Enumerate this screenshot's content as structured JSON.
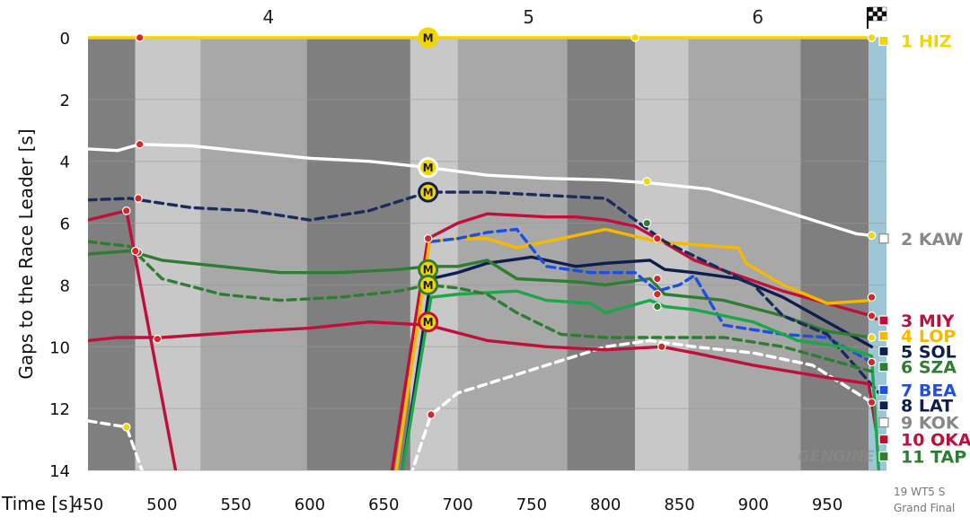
{
  "chart_data": {
    "type": "line",
    "xlabel": "Time [s]",
    "ylabel": "Gaps to the Race Leader [s]",
    "xlim": [
      450,
      990
    ],
    "ylim": [
      0,
      14
    ],
    "y_inverted": true,
    "x_ticks": [
      "450",
      "500",
      "550",
      "600",
      "650",
      "700",
      "750",
      "800",
      "850",
      "900",
      "950"
    ],
    "y_ticks": [
      "0",
      "2",
      "4",
      "6",
      "8",
      "10",
      "12",
      "14"
    ],
    "grid": true,
    "legend_placement": "right",
    "laps": [
      {
        "label": "4",
        "center": 572
      },
      {
        "label": "5",
        "center": 748
      },
      {
        "label": "6",
        "center": 903
      }
    ],
    "sector_bands": [
      {
        "from": 450,
        "to": 482,
        "shade": "#7f7f7f"
      },
      {
        "from": 482,
        "to": 526,
        "shade": "#c8c8c8"
      },
      {
        "from": 526,
        "to": 598,
        "shade": "#a8a8a8"
      },
      {
        "from": 598,
        "to": 668,
        "shade": "#7f7f7f"
      },
      {
        "from": 668,
        "to": 700,
        "shade": "#c8c8c8"
      },
      {
        "from": 700,
        "to": 774,
        "shade": "#a8a8a8"
      },
      {
        "from": 774,
        "to": 820,
        "shade": "#7f7f7f"
      },
      {
        "from": 820,
        "to": 856,
        "shade": "#c8c8c8"
      },
      {
        "from": 856,
        "to": 932,
        "shade": "#a8a8a8"
      },
      {
        "from": 932,
        "to": 978,
        "shade": "#7f7f7f"
      },
      {
        "from": 978,
        "to": 990,
        "shade": "#9ec7d6"
      }
    ],
    "series": [
      {
        "name": "1 HIZ",
        "color": "#f2d600",
        "dash": false,
        "points": [
          [
            450,
            0
          ],
          [
            485,
            0
          ],
          [
            680,
            0
          ],
          [
            820,
            0
          ],
          [
            980,
            0
          ]
        ],
        "markers": [
          [
            485,
            0,
            "#d62728"
          ],
          [
            820,
            0,
            "#f2d600"
          ],
          [
            980,
            0,
            "#f2d600"
          ]
        ]
      },
      {
        "name": "2 KAW",
        "color": "#ffffff",
        "dash": false,
        "points": [
          [
            450,
            3.6
          ],
          [
            470,
            3.65
          ],
          [
            485,
            3.45
          ],
          [
            520,
            3.5
          ],
          [
            560,
            3.7
          ],
          [
            600,
            3.9
          ],
          [
            640,
            4.0
          ],
          [
            680,
            4.2
          ],
          [
            720,
            4.45
          ],
          [
            760,
            4.55
          ],
          [
            800,
            4.6
          ],
          [
            830,
            4.7
          ],
          [
            870,
            4.9
          ],
          [
            900,
            5.3
          ],
          [
            940,
            5.9
          ],
          [
            970,
            6.35
          ],
          [
            980,
            6.4
          ]
        ],
        "markers": [
          [
            485,
            3.45,
            "#d62728"
          ],
          [
            828,
            4.65,
            "#f2d600"
          ],
          [
            980,
            6.4,
            "#f2d600"
          ]
        ]
      },
      {
        "name": "3 MIY",
        "color": "#c0103a",
        "dash": false,
        "points": [
          [
            450,
            5.9
          ],
          [
            476,
            5.6
          ],
          [
            510,
            14.2
          ]
        ],
        "markers": [
          [
            476,
            5.6,
            "#d62728"
          ]
        ]
      },
      {
        "name": "3 MIY lap5",
        "color": "#c0103a",
        "dash": false,
        "points": [
          [
            655,
            14.2
          ],
          [
            680,
            6.5
          ],
          [
            700,
            6.0
          ],
          [
            720,
            5.7
          ],
          [
            760,
            5.8
          ],
          [
            780,
            5.8
          ],
          [
            800,
            5.9
          ],
          [
            820,
            6.1
          ],
          [
            835,
            6.5
          ],
          [
            860,
            7.2
          ],
          [
            890,
            7.7
          ],
          [
            920,
            8.2
          ],
          [
            950,
            8.6
          ],
          [
            980,
            9.0
          ],
          [
            983,
            9.1
          ]
        ],
        "markers": [
          [
            680,
            6.5,
            "#d62728"
          ],
          [
            835,
            6.5,
            "#d62728"
          ],
          [
            980,
            9.0,
            "#d62728"
          ]
        ]
      },
      {
        "name": "4 LOP",
        "color": "#f7b900",
        "dash": false,
        "points": [
          [
            658,
            14.2
          ],
          [
            681,
            6.6
          ],
          [
            700,
            6.5
          ],
          [
            720,
            6.5
          ],
          [
            740,
            6.8
          ],
          [
            760,
            6.6
          ],
          [
            780,
            6.4
          ],
          [
            800,
            6.2
          ],
          [
            835,
            6.6
          ],
          [
            860,
            6.7
          ],
          [
            890,
            6.8
          ],
          [
            895,
            7.3
          ],
          [
            920,
            8.0
          ],
          [
            950,
            8.6
          ],
          [
            980,
            8.5
          ]
        ],
        "markers": [
          [
            980,
            8.4,
            "#d62728"
          ]
        ]
      },
      {
        "name": "5 SOL",
        "color": "#0d1e4f",
        "dash": false,
        "points": [
          [
            662,
            14.2
          ],
          [
            682,
            7.8
          ],
          [
            700,
            7.6
          ],
          [
            720,
            7.3
          ],
          [
            750,
            7.1
          ],
          [
            780,
            7.4
          ],
          [
            800,
            7.3
          ],
          [
            830,
            7.2
          ],
          [
            840,
            7.5
          ],
          [
            860,
            7.6
          ],
          [
            890,
            7.8
          ],
          [
            920,
            8.4
          ],
          [
            950,
            9.2
          ],
          [
            980,
            10.0
          ]
        ],
        "markers": [
          [
            835,
            7.8,
            "#d62728"
          ]
        ]
      },
      {
        "name": "6 SZA",
        "color": "#2f7d32",
        "dash": false,
        "points": [
          [
            450,
            7.0
          ],
          [
            478,
            6.9
          ],
          [
            500,
            7.2
          ],
          [
            540,
            7.4
          ],
          [
            580,
            7.6
          ],
          [
            620,
            7.6
          ],
          [
            660,
            7.5
          ],
          [
            680,
            7.4
          ],
          [
            700,
            7.4
          ],
          [
            720,
            7.2
          ],
          [
            740,
            7.8
          ],
          [
            780,
            7.9
          ],
          [
            800,
            8.0
          ],
          [
            830,
            7.8
          ],
          [
            840,
            8.3
          ],
          [
            880,
            8.5
          ],
          [
            920,
            9.0
          ],
          [
            950,
            9.5
          ],
          [
            980,
            9.7
          ]
        ],
        "markers": [
          [
            484,
            6.95,
            "#d62728"
          ],
          [
            835,
            8.3,
            "#d62728"
          ],
          [
            980,
            9.7,
            "#f2d600"
          ]
        ]
      },
      {
        "name": "7 BEA",
        "color": "#1f4fe0",
        "dash": true,
        "points": [
          [
            682,
            6.6
          ],
          [
            700,
            6.5
          ],
          [
            720,
            6.3
          ],
          [
            740,
            6.2
          ],
          [
            760,
            7.4
          ],
          [
            790,
            7.6
          ],
          [
            820,
            7.6
          ],
          [
            835,
            8.2
          ],
          [
            850,
            8.0
          ],
          [
            860,
            7.7
          ],
          [
            880,
            9.3
          ],
          [
            920,
            9.6
          ],
          [
            950,
            9.7
          ],
          [
            980,
            10.5
          ]
        ],
        "markers": [
          [
            980,
            10.5,
            "#d62728"
          ]
        ]
      },
      {
        "name": "8 LAT",
        "color": "#1a2c5e",
        "dash": true,
        "points": [
          [
            450,
            5.25
          ],
          [
            478,
            5.2
          ],
          [
            520,
            5.5
          ],
          [
            560,
            5.6
          ],
          [
            600,
            5.9
          ],
          [
            640,
            5.6
          ],
          [
            680,
            5.0
          ],
          [
            720,
            5.0
          ],
          [
            760,
            5.1
          ],
          [
            800,
            5.2
          ],
          [
            820,
            5.9
          ],
          [
            840,
            6.6
          ],
          [
            870,
            7.3
          ],
          [
            900,
            8.0
          ],
          [
            920,
            9.0
          ],
          [
            950,
            9.6
          ],
          [
            985,
            11.5
          ]
        ],
        "markers": [
          [
            484,
            5.2,
            "#d62728"
          ],
          [
            828,
            6.0,
            "#2f7d32"
          ]
        ]
      },
      {
        "name": "9 KOK",
        "color": "#ffffff",
        "dash": true,
        "points": [
          [
            450,
            12.4
          ],
          [
            476,
            12.6
          ],
          [
            488,
            14.2
          ]
        ],
        "markers": [
          [
            476,
            12.6,
            "#f2d600"
          ]
        ]
      },
      {
        "name": "9 KOK lap5",
        "color": "#ffffff",
        "dash": true,
        "points": [
          [
            668,
            14.2
          ],
          [
            682,
            12.2
          ],
          [
            700,
            11.5
          ],
          [
            720,
            11.2
          ],
          [
            760,
            10.6
          ],
          [
            800,
            10.0
          ],
          [
            830,
            9.8
          ],
          [
            860,
            10.0
          ],
          [
            900,
            10.2
          ],
          [
            940,
            10.6
          ],
          [
            980,
            11.8
          ]
        ],
        "markers": [
          [
            682,
            12.2,
            "#d62728"
          ]
        ]
      },
      {
        "name": "10 OKA",
        "color": "#c0103a",
        "dash": false,
        "points": [
          [
            450,
            9.8
          ],
          [
            470,
            9.7
          ],
          [
            500,
            9.7
          ],
          [
            560,
            9.5
          ],
          [
            600,
            9.4
          ],
          [
            640,
            9.2
          ],
          [
            680,
            9.3
          ],
          [
            720,
            9.8
          ],
          [
            760,
            10.0
          ],
          [
            800,
            10.1
          ],
          [
            838,
            10.0
          ],
          [
            860,
            10.2
          ],
          [
            900,
            10.6
          ],
          [
            950,
            11.0
          ],
          [
            978,
            11.2
          ],
          [
            983,
            12.7
          ]
        ],
        "markers": [
          [
            497,
            9.75,
            "#d62728"
          ],
          [
            838,
            10.0,
            "#d62728"
          ],
          [
            980,
            11.8,
            "#d62728"
          ]
        ]
      },
      {
        "name": "11 TAP",
        "color": "#1ca64a",
        "dash": false,
        "points": [
          [
            662,
            14.2
          ],
          [
            682,
            8.4
          ],
          [
            700,
            8.3
          ],
          [
            740,
            8.2
          ],
          [
            760,
            8.5
          ],
          [
            790,
            8.6
          ],
          [
            800,
            8.9
          ],
          [
            830,
            8.5
          ],
          [
            840,
            8.7
          ],
          [
            860,
            8.8
          ],
          [
            900,
            9.2
          ],
          [
            930,
            9.8
          ],
          [
            960,
            10.0
          ],
          [
            980,
            10.3
          ],
          [
            985,
            14.2
          ]
        ],
        "markers": [
          [
            835,
            8.7,
            "#2f7d32"
          ]
        ]
      },
      {
        "name": "6 SZA lap5",
        "color": "#2f7d32",
        "dash": true,
        "points": [
          [
            450,
            6.6
          ],
          [
            478,
            6.75
          ],
          [
            500,
            7.8
          ],
          [
            540,
            8.3
          ],
          [
            580,
            8.5
          ],
          [
            620,
            8.4
          ],
          [
            660,
            8.2
          ],
          [
            680,
            8.0
          ],
          [
            700,
            8.1
          ],
          [
            720,
            8.3
          ],
          [
            740,
            8.9
          ],
          [
            770,
            9.6
          ],
          [
            800,
            9.7
          ],
          [
            840,
            9.7
          ],
          [
            880,
            9.7
          ],
          [
            920,
            10.0
          ],
          [
            950,
            10.4
          ],
          [
            980,
            10.8
          ]
        ],
        "markers": [
          [
            482,
            6.9,
            "#d62728"
          ]
        ]
      }
    ],
    "pit_markers": [
      {
        "label": "M",
        "x": 680,
        "y": 0,
        "fill": "#f2d600",
        "ring": "#f2d600"
      },
      {
        "label": "M",
        "x": 680,
        "y": 4.2,
        "fill": "#f2d600",
        "ring": "#ffffff"
      },
      {
        "label": "M",
        "x": 680,
        "y": 5.0,
        "fill": "#f2d600",
        "ring": "#0d1e4f"
      },
      {
        "label": "M",
        "x": 680,
        "y": 7.5,
        "fill": "#f2d600",
        "ring": "#2f7d32"
      },
      {
        "label": "M",
        "x": 680,
        "y": 8.0,
        "fill": "#f2d600",
        "ring": "#2f7d32"
      },
      {
        "label": "M",
        "x": 680,
        "y": 9.2,
        "fill": "#f2d600",
        "ring": "#c0103a"
      }
    ],
    "legend": [
      {
        "label": "1 HIZ",
        "color": "#f2d600",
        "y": 0.1
      },
      {
        "label": "2 KAW",
        "color": "#ffffff",
        "stroke": "#888888",
        "y": 6.5
      },
      {
        "label": "3 MIY",
        "color": "#c0103a",
        "y": 9.15
      },
      {
        "label": "4 LOP",
        "color": "#f7b900",
        "y": 9.65
      },
      {
        "label": "5 SOL",
        "color": "#0d1e4f",
        "y": 10.15
      },
      {
        "label": "6 SZA",
        "color": "#2f7d32",
        "y": 10.65
      },
      {
        "label": "7 BEA",
        "color": "#1f4fe0",
        "y": 11.4
      },
      {
        "label": "8 LAT",
        "color": "#0d1e4f",
        "y": 11.9
      },
      {
        "label": "9 KOK",
        "color": "#ffffff",
        "stroke": "#888888",
        "y": 12.45
      },
      {
        "label": "10 OKA",
        "color": "#c0103a",
        "y": 13.0
      },
      {
        "label": "11 TAP",
        "color": "#2f7d32",
        "y": 13.55
      }
    ],
    "watermark": "GENGINE",
    "footer": [
      "19 WT5 S",
      "Grand Final"
    ]
  }
}
